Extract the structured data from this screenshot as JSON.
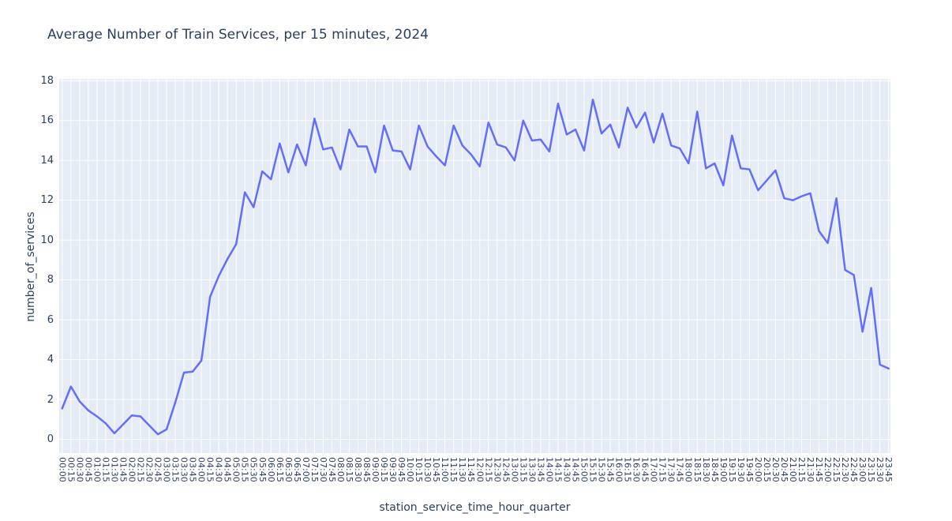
{
  "title": "Average Number of Train Services, per 15 minutes, 2024",
  "chart_data": {
    "type": "line",
    "title": "Average Number of Train Services, per 15 minutes, 2024",
    "xlabel": "station_service_time_hour_quarter",
    "ylabel": "number_of_services",
    "ylim": [
      0,
      18
    ],
    "ytick_step": 2,
    "yticks": [
      0,
      2,
      4,
      6,
      8,
      10,
      12,
      14,
      16,
      18
    ],
    "grid": true,
    "legend_shown": false,
    "x": [
      "00:00",
      "00:15",
      "00:30",
      "00:45",
      "01:00",
      "01:15",
      "01:30",
      "01:45",
      "02:00",
      "02:15",
      "02:30",
      "02:45",
      "03:00",
      "03:15",
      "03:30",
      "03:45",
      "04:00",
      "04:15",
      "04:30",
      "04:45",
      "05:00",
      "05:15",
      "05:30",
      "05:45",
      "06:00",
      "06:15",
      "06:30",
      "06:45",
      "07:00",
      "07:15",
      "07:30",
      "07:45",
      "08:00",
      "08:15",
      "08:30",
      "08:45",
      "09:00",
      "09:15",
      "09:30",
      "09:45",
      "10:00",
      "10:15",
      "10:30",
      "10:45",
      "11:00",
      "11:15",
      "11:30",
      "11:45",
      "12:00",
      "12:15",
      "12:30",
      "12:45",
      "13:00",
      "13:15",
      "13:30",
      "13:45",
      "14:00",
      "14:15",
      "14:30",
      "14:45",
      "15:00",
      "15:15",
      "15:30",
      "15:45",
      "16:00",
      "16:15",
      "16:30",
      "16:45",
      "17:00",
      "17:15",
      "17:30",
      "17:45",
      "18:00",
      "18:15",
      "18:30",
      "18:45",
      "19:00",
      "19:15",
      "19:30",
      "19:45",
      "20:00",
      "20:15",
      "20:30",
      "20:45",
      "21:00",
      "21:15",
      "21:30",
      "21:45",
      "22:00",
      "22:15",
      "22:30",
      "22:45",
      "23:00",
      "23:15",
      "23:30",
      "23:45"
    ],
    "y": [
      1.55,
      2.65,
      1.9,
      1.45,
      1.15,
      0.8,
      0.3,
      0.75,
      1.2,
      1.15,
      0.7,
      0.25,
      0.5,
      1.85,
      3.35,
      3.4,
      3.95,
      7.15,
      8.2,
      9.05,
      9.8,
      12.4,
      11.65,
      13.45,
      13.05,
      14.85,
      13.4,
      14.8,
      13.75,
      16.1,
      14.55,
      14.65,
      13.55,
      15.55,
      14.7,
      14.7,
      13.4,
      15.75,
      14.5,
      14.45,
      13.55,
      15.75,
      14.7,
      14.2,
      13.75,
      15.75,
      14.75,
      14.3,
      13.7,
      15.9,
      14.8,
      14.65,
      14.0,
      16.0,
      15.0,
      15.05,
      14.45,
      16.85,
      15.3,
      15.55,
      14.5,
      17.05,
      15.35,
      15.8,
      14.65,
      16.65,
      15.65,
      16.4,
      14.9,
      16.35,
      14.75,
      14.6,
      13.85,
      16.45,
      13.6,
      13.85,
      12.75,
      15.25,
      13.6,
      13.55,
      12.5,
      13.0,
      13.5,
      12.1,
      12.0,
      12.2,
      12.35,
      10.45,
      9.85,
      12.1,
      8.5,
      8.25,
      5.4,
      7.6,
      3.75,
      3.55
    ]
  },
  "style": {
    "line_color": "#636EFA",
    "plot_bg": "#E5ECF6",
    "grid_color": "#FFFFFF",
    "text_color": "#2a3f5f",
    "page_bg": "#FFFFFF"
  }
}
